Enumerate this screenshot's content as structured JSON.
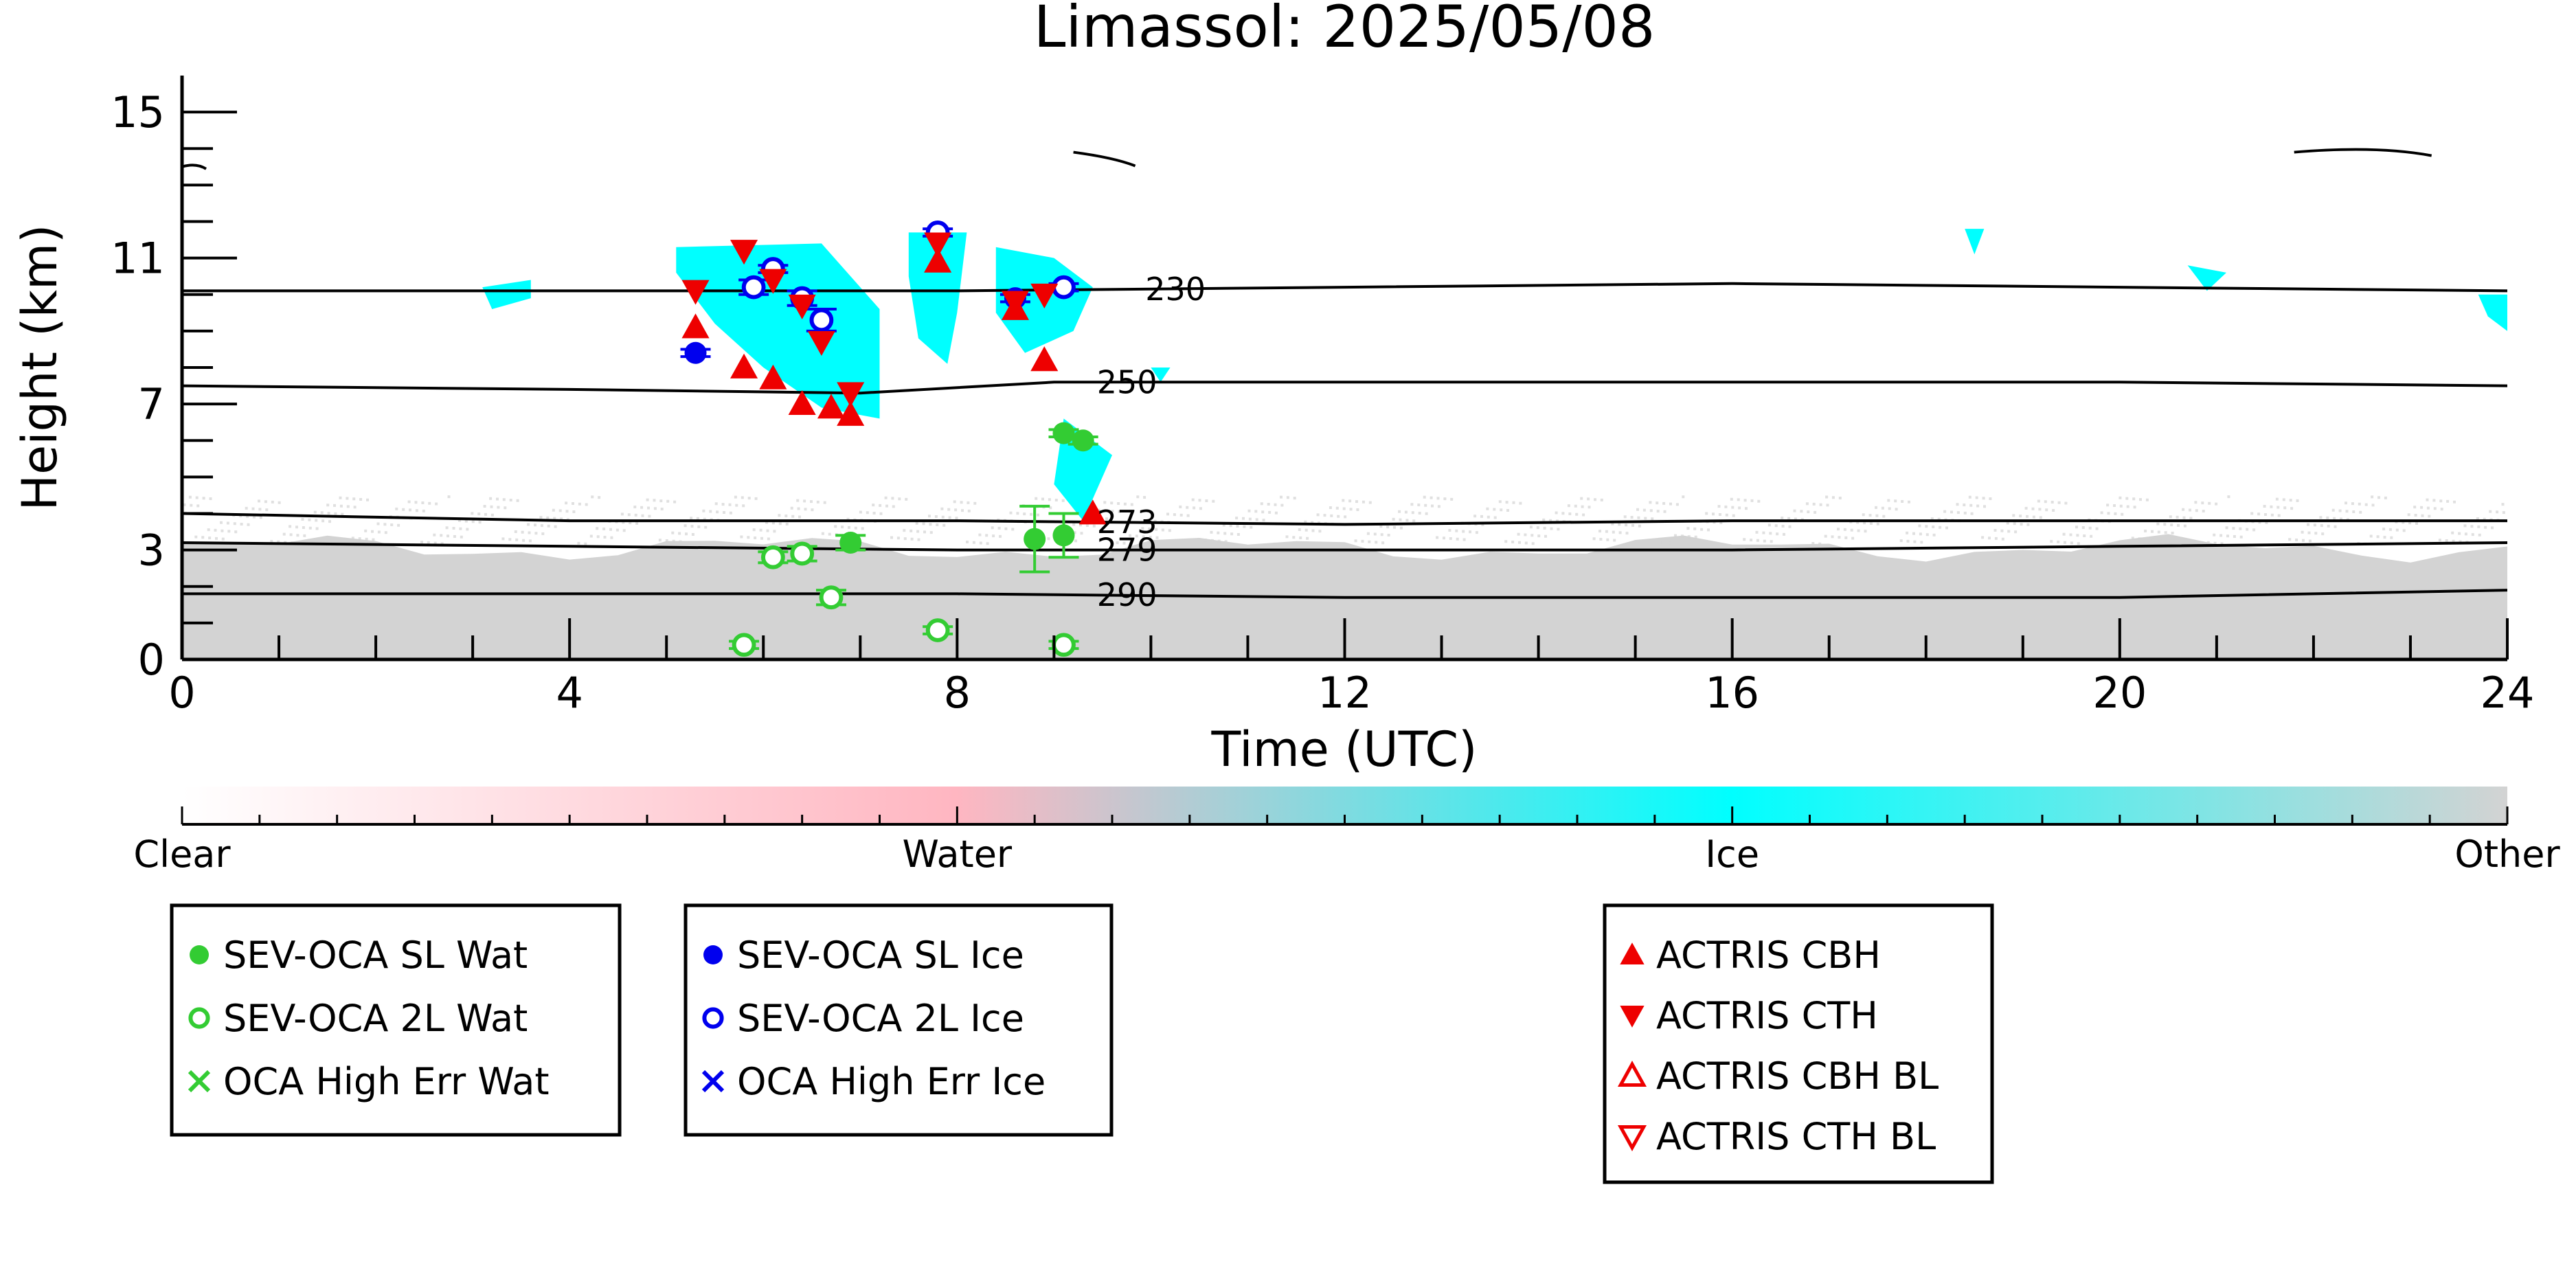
{
  "chart_data": {
    "type": "scatter",
    "title": "Limassol: 2025/05/08",
    "xlabel": "Time (UTC)",
    "ylabel": "Height (km)",
    "xlim": [
      0,
      24
    ],
    "ylim": [
      0,
      16
    ],
    "x_ticks": [
      0,
      4,
      8,
      12,
      16,
      20,
      24
    ],
    "y_ticks": [
      0,
      3,
      7,
      11,
      15
    ],
    "grid": false,
    "background_classes": {
      "clear_color": "#ffffff",
      "water_color": "#ffb6c1",
      "ice_color": "#00ffff",
      "other_color": "#d3d3d3"
    },
    "temperature_contours": [
      {
        "label": "230",
        "label_x": 9.8,
        "points": [
          [
            0,
            10.1
          ],
          [
            4,
            10.1
          ],
          [
            8,
            10.1
          ],
          [
            12,
            10.2
          ],
          [
            16,
            10.3
          ],
          [
            20,
            10.2
          ],
          [
            24,
            10.1
          ]
        ]
      },
      {
        "label": "250",
        "label_x": 9.3,
        "points": [
          [
            0,
            7.5
          ],
          [
            4,
            7.4
          ],
          [
            7,
            7.3
          ],
          [
            9,
            7.6
          ],
          [
            12,
            7.6
          ],
          [
            16,
            7.6
          ],
          [
            20,
            7.6
          ],
          [
            24,
            7.5
          ]
        ]
      },
      {
        "label": "273",
        "label_x": 9.3,
        "points": [
          [
            0,
            4.0
          ],
          [
            4,
            3.8
          ],
          [
            8,
            3.8
          ],
          [
            12,
            3.7
          ],
          [
            16,
            3.8
          ],
          [
            20,
            3.8
          ],
          [
            24,
            3.8
          ]
        ]
      },
      {
        "label": "279",
        "label_x": 9.3,
        "points": [
          [
            0,
            3.2
          ],
          [
            4,
            3.1
          ],
          [
            8,
            3.0
          ],
          [
            12,
            3.0
          ],
          [
            16,
            3.0
          ],
          [
            20,
            3.1
          ],
          [
            24,
            3.2
          ]
        ]
      },
      {
        "label": "290",
        "label_x": 9.3,
        "points": [
          [
            0,
            1.8
          ],
          [
            4,
            1.8
          ],
          [
            8,
            1.8
          ],
          [
            12,
            1.7
          ],
          [
            16,
            1.7
          ],
          [
            20,
            1.7
          ],
          [
            24,
            1.9
          ]
        ]
      }
    ],
    "colorbar": {
      "labels": [
        "Clear",
        "Water",
        "Ice",
        "Other"
      ],
      "positions": [
        0,
        1,
        2,
        3
      ]
    },
    "series": [
      {
        "name": "SEV-OCA SL Wat",
        "marker": "filled-circle",
        "color": "#33cc33",
        "points": [
          [
            6.9,
            3.2
          ],
          [
            8.8,
            3.3
          ],
          [
            9.1,
            3.4
          ],
          [
            9.1,
            6.2
          ],
          [
            9.3,
            6.0
          ]
        ],
        "err": [
          0.2,
          0.9,
          0.6,
          0.1,
          0.1
        ]
      },
      {
        "name": "SEV-OCA 2L Wat",
        "marker": "open-circle",
        "color": "#33cc33",
        "points": [
          [
            5.8,
            0.4
          ],
          [
            6.1,
            2.8
          ],
          [
            6.4,
            2.9
          ],
          [
            6.7,
            1.7
          ],
          [
            7.8,
            0.8
          ],
          [
            9.1,
            0.4
          ]
        ],
        "err": [
          0.1,
          0.15,
          0.2,
          0.2,
          0.1,
          0.1
        ]
      },
      {
        "name": "OCA High Err Wat",
        "marker": "x",
        "color": "#33cc33",
        "points": []
      },
      {
        "name": "SEV-OCA SL Ice",
        "marker": "filled-circle",
        "color": "#0000ee",
        "points": [
          [
            5.3,
            8.4
          ],
          [
            8.6,
            9.9
          ]
        ],
        "err": [
          0.1,
          0.1
        ]
      },
      {
        "name": "SEV-OCA 2L Ice",
        "marker": "open-circle",
        "color": "#0000ee",
        "points": [
          [
            5.9,
            10.2
          ],
          [
            6.1,
            10.7
          ],
          [
            6.4,
            9.9
          ],
          [
            6.6,
            9.3
          ],
          [
            7.8,
            11.7
          ],
          [
            9.1,
            10.2
          ]
        ],
        "err": [
          0.2,
          0.1,
          0.2,
          0.3,
          0.1,
          0.1
        ]
      },
      {
        "name": "OCA High Err Ice",
        "marker": "x",
        "color": "#0000ee",
        "points": []
      },
      {
        "name": "ACTRIS CBH",
        "marker": "filled-triangle-up",
        "color": "#ee0000",
        "points": [
          [
            5.3,
            9.1
          ],
          [
            5.8,
            8.0
          ],
          [
            6.1,
            7.7
          ],
          [
            6.4,
            7.0
          ],
          [
            6.7,
            6.9
          ],
          [
            6.9,
            6.7
          ],
          [
            7.8,
            10.9
          ],
          [
            8.6,
            9.6
          ],
          [
            8.9,
            8.2
          ],
          [
            9.4,
            4.0
          ]
        ]
      },
      {
        "name": "ACTRIS CTH",
        "marker": "filled-triangle-down",
        "color": "#ee0000",
        "points": [
          [
            5.3,
            10.1
          ],
          [
            5.8,
            11.2
          ],
          [
            6.1,
            10.4
          ],
          [
            6.4,
            9.7
          ],
          [
            6.6,
            8.7
          ],
          [
            6.9,
            7.3
          ],
          [
            7.8,
            11.4
          ],
          [
            8.6,
            9.8
          ],
          [
            8.9,
            10.0
          ]
        ]
      },
      {
        "name": "ACTRIS CBH BL",
        "marker": "open-triangle-up",
        "color": "#ee0000",
        "points": []
      },
      {
        "name": "ACTRIS CTH BL",
        "marker": "open-triangle-down",
        "color": "#ee0000",
        "points": []
      }
    ]
  }
}
